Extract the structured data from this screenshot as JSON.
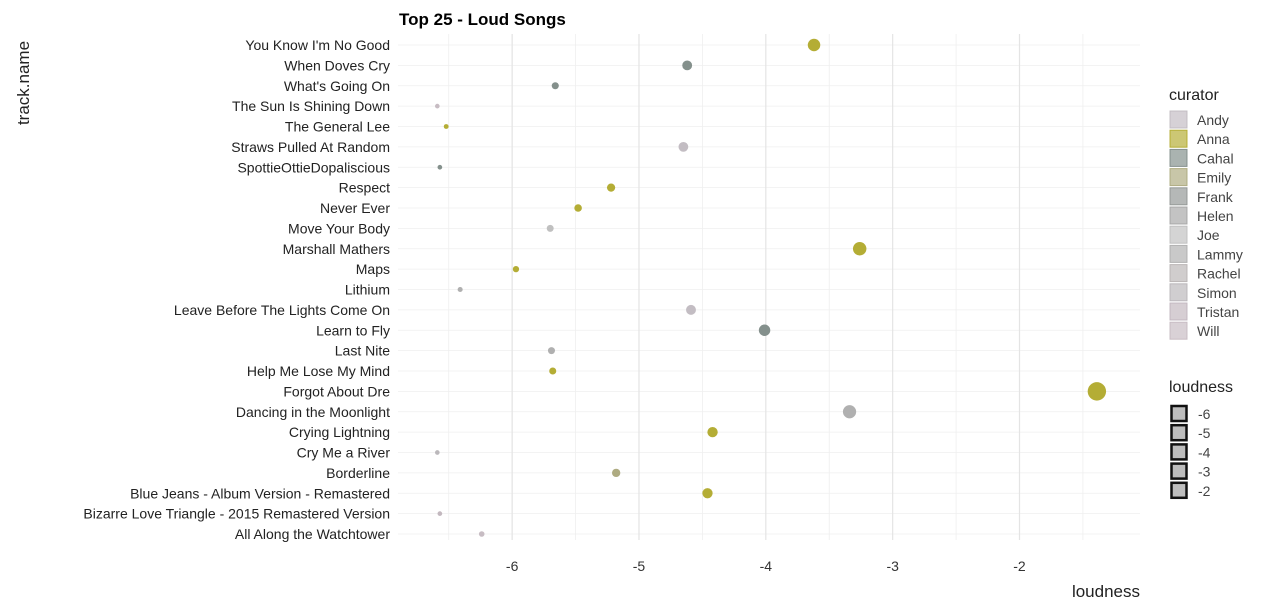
{
  "chart_data": {
    "type": "scatter",
    "title": "Top 25 - Loud Songs",
    "xlabel": "loudness",
    "ylabel": "track.name",
    "xlim": [
      -6.9,
      -1.05
    ],
    "x_ticks": [
      -6,
      -5,
      -4,
      -3,
      -2
    ],
    "x_tick_labels": [
      "-6",
      "-5",
      "-4",
      "-3",
      "-2"
    ],
    "grid": true,
    "categories": [
      "All Along the Watchtower",
      "Bizarre Love Triangle - 2015 Remastered Version",
      "Blue Jeans - Album Version - Remastered",
      "Borderline",
      "Cry Me a River",
      "Crying Lightning",
      "Dancing in the Moonlight",
      "Forgot About Dre",
      "Help Me Lose My Mind",
      "Last Nite",
      "Learn to Fly",
      "Leave Before The Lights Come On",
      "Lithium",
      "Maps",
      "Marshall Mathers",
      "Move Your Body",
      "Never Ever",
      "Respect",
      "SpottieOttieDopaliscious",
      "Straws Pulled At Random",
      "The General Lee",
      "The Sun Is Shining Down",
      "What's Going On",
      "When Doves Cry",
      "You Know I'm No Good"
    ],
    "points": [
      {
        "track": "All Along the Watchtower",
        "loudness": -6.24,
        "curator": "Will"
      },
      {
        "track": "Bizarre Love Triangle - 2015 Remastered Version",
        "loudness": -6.57,
        "curator": "Tristan"
      },
      {
        "track": "Blue Jeans - Album Version - Remastered",
        "loudness": -4.46,
        "curator": "Anna"
      },
      {
        "track": "Borderline",
        "loudness": -5.18,
        "curator": "Emily"
      },
      {
        "track": "Cry Me a River",
        "loudness": -6.59,
        "curator": "Simon"
      },
      {
        "track": "Crying Lightning",
        "loudness": -4.42,
        "curator": "Anna"
      },
      {
        "track": "Dancing in the Moonlight",
        "loudness": -3.34,
        "curator": "Lammy"
      },
      {
        "track": "Forgot About Dre",
        "loudness": -1.39,
        "curator": "Anna"
      },
      {
        "track": "Help Me Lose My Mind",
        "loudness": -5.68,
        "curator": "Anna"
      },
      {
        "track": "Last Nite",
        "loudness": -5.69,
        "curator": "Lammy"
      },
      {
        "track": "Learn to Fly",
        "loudness": -4.01,
        "curator": "Cahal"
      },
      {
        "track": "Leave Before The Lights Come On",
        "loudness": -4.59,
        "curator": "Andy"
      },
      {
        "track": "Lithium",
        "loudness": -6.41,
        "curator": "Lammy"
      },
      {
        "track": "Maps",
        "loudness": -5.97,
        "curator": "Anna"
      },
      {
        "track": "Marshall Mathers",
        "loudness": -3.26,
        "curator": "Anna"
      },
      {
        "track": "Move Your Body",
        "loudness": -5.7,
        "curator": "Joe"
      },
      {
        "track": "Never Ever",
        "loudness": -5.48,
        "curator": "Anna"
      },
      {
        "track": "Respect",
        "loudness": -5.22,
        "curator": "Anna"
      },
      {
        "track": "SpottieOttieDopaliscious",
        "loudness": -6.57,
        "curator": "Cahal"
      },
      {
        "track": "Straws Pulled At Random",
        "loudness": -4.65,
        "curator": "Andy"
      },
      {
        "track": "The General Lee",
        "loudness": -6.52,
        "curator": "Anna"
      },
      {
        "track": "The Sun Is Shining Down",
        "loudness": -6.59,
        "curator": "Will"
      },
      {
        "track": "What's Going On",
        "loudness": -5.66,
        "curator": "Cahal"
      },
      {
        "track": "When Doves Cry",
        "loudness": -4.62,
        "curator": "Cahal"
      },
      {
        "track": "You Know I'm No Good",
        "loudness": -3.62,
        "curator": "Anna"
      }
    ],
    "legend_curator": {
      "title": "curator",
      "placement": "right",
      "items": [
        {
          "name": "Andy",
          "color": "#c0b9c0"
        },
        {
          "name": "Anna",
          "color": "#b0a92a"
        },
        {
          "name": "Cahal",
          "color": "#7d8a86"
        },
        {
          "name": "Emily",
          "color": "#aaa77a"
        },
        {
          "name": "Frank",
          "color": "#8e9290"
        },
        {
          "name": "Helen",
          "color": "#a3a3a3"
        },
        {
          "name": "Joe",
          "color": "#bdbdbd"
        },
        {
          "name": "Lammy",
          "color": "#acacac"
        },
        {
          "name": "Rachel",
          "color": "#b7b2b2"
        },
        {
          "name": "Simon",
          "color": "#b7b4b7"
        },
        {
          "name": "Tristan",
          "color": "#c0b4bc"
        },
        {
          "name": "Will",
          "color": "#c4b8c0"
        }
      ]
    },
    "legend_loudness": {
      "title": "loudness",
      "placement": "right",
      "items": [
        {
          "label": "-6",
          "value": -6
        },
        {
          "label": "-5",
          "value": -5
        },
        {
          "label": "-4",
          "value": -4
        },
        {
          "label": "-3",
          "value": -3
        },
        {
          "label": "-2",
          "value": -2
        }
      ]
    }
  }
}
